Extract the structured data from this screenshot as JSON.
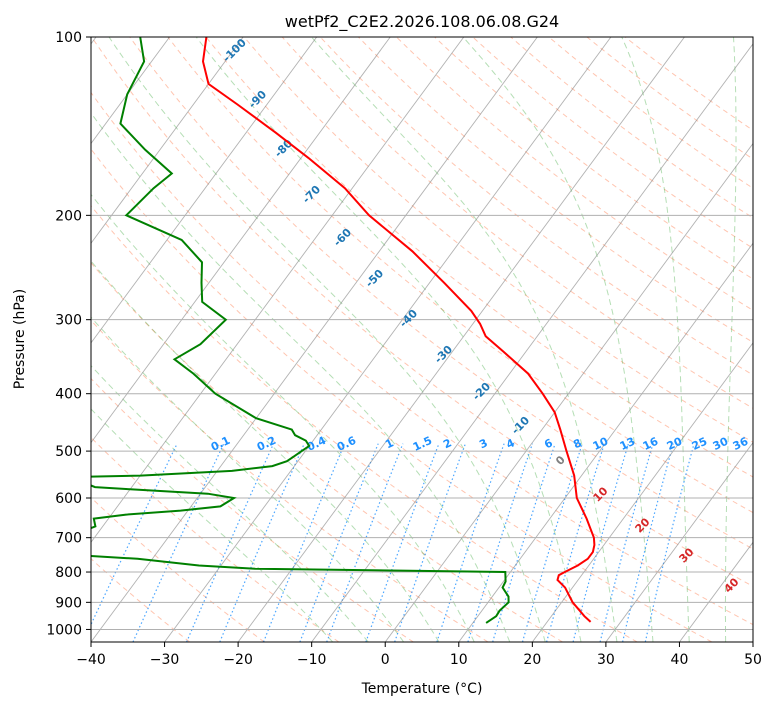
{
  "chart_data": {
    "type": "skew-t",
    "title": "wetPf2_C2E2.2026.108.06.08.G24",
    "xlabel": "Temperature (°C)",
    "ylabel": "Pressure (hPa)",
    "xlim": [
      -40,
      50
    ],
    "ylim": [
      1050,
      100
    ],
    "x_ticks": [
      -40,
      -30,
      -20,
      -10,
      0,
      10,
      20,
      30,
      40,
      50
    ],
    "x_tick_labels": [
      "−40",
      "−30",
      "−20",
      "−10",
      "0",
      "10",
      "20",
      "30",
      "40",
      "50"
    ],
    "y_ticks": [
      100,
      200,
      300,
      400,
      500,
      600,
      700,
      800,
      900,
      1000
    ],
    "y_tick_labels": [
      "100",
      "200",
      "300",
      "400",
      "500",
      "600",
      "700",
      "800",
      "900",
      "1000"
    ],
    "temperature": {
      "name": "Temperature",
      "color": "#ff0000",
      "pressure": [
        971,
        950,
        900,
        850,
        825,
        810,
        800,
        780,
        760,
        740,
        720,
        700,
        650,
        600,
        550,
        500,
        460,
        430,
        400,
        370,
        340,
        320,
        305,
        290,
        260,
        230,
        200,
        180,
        160,
        145,
        130,
        120,
        110,
        100
      ],
      "values": [
        25.9,
        24.5,
        21.5,
        19.0,
        17.2,
        16.9,
        17.4,
        18.5,
        19.2,
        19.2,
        18.7,
        17.9,
        15.0,
        11.6,
        9.0,
        5.5,
        2.5,
        0.0,
        -3.5,
        -7.5,
        -13.0,
        -17.0,
        -19.0,
        -21.5,
        -28.0,
        -35.5,
        -45.0,
        -51.0,
        -59.0,
        -66.0,
        -74.0,
        -80.0,
        -83.0,
        -85.0
      ]
    },
    "dewpoint": {
      "name": "Dewpoint",
      "color": "#008000",
      "pressure": [
        975,
        950,
        930,
        900,
        880,
        850,
        830,
        800,
        790,
        780,
        760,
        750,
        740,
        730,
        715,
        700,
        685,
        670,
        650,
        640,
        630,
        620,
        600,
        590,
        580,
        575,
        565,
        555,
        550,
        540,
        530,
        520,
        510,
        500,
        490,
        480,
        470,
        460,
        440,
        400,
        370,
        350,
        330,
        300,
        280,
        260,
        240,
        220,
        200,
        180,
        170,
        155,
        140,
        125,
        110,
        100
      ],
      "values": [
        11.8,
        12.5,
        12.4,
        12.8,
        12.2,
        10.5,
        10.3,
        9.3,
        -25.0,
        -33.0,
        -42.0,
        -50.0,
        -51.0,
        -49.8,
        -52.0,
        -50.8,
        -52.5,
        -51.0,
        -52.0,
        -48.0,
        -41.0,
        -36.0,
        -35.0,
        -39.0,
        -50.0,
        -55.0,
        -57.0,
        -65.0,
        -50.0,
        -38.0,
        -33.0,
        -31.5,
        -31.0,
        -30.5,
        -30.0,
        -31.0,
        -33.0,
        -34.0,
        -40.0,
        -48.0,
        -53.0,
        -57.0,
        -55.0,
        -54.0,
        -59.0,
        -61.0,
        -63.0,
        -68.0,
        -78.0,
        -77.0,
        -76.0,
        -82.0,
        -88.0,
        -90.0,
        -91.0,
        -94.0
      ]
    },
    "dry_adiabat_labels": [
      "-100",
      "-90",
      "-80",
      "-70",
      "-60",
      "-50",
      "-40",
      "-30",
      "-20",
      "-10",
      "0",
      "10",
      "20",
      "30",
      "40"
    ],
    "mixing_ratio_labels": [
      "0.1",
      "0.2",
      "0.4",
      "0.6",
      "1",
      "1.5",
      "2",
      "3",
      "4",
      "6",
      "8",
      "10",
      "13",
      "16",
      "20",
      "25",
      "30",
      "36"
    ],
    "colors": {
      "dry_adiabat": "#ff7f50",
      "moist_adiabat": "#2ca02c",
      "mixing_ratio": "#1f77b4",
      "isotherm": "#808080",
      "label_cold": "#1f77b4",
      "label_zero": "#808080",
      "label_warm": "#d62728",
      "label_mixing": "#1e90ff"
    }
  }
}
